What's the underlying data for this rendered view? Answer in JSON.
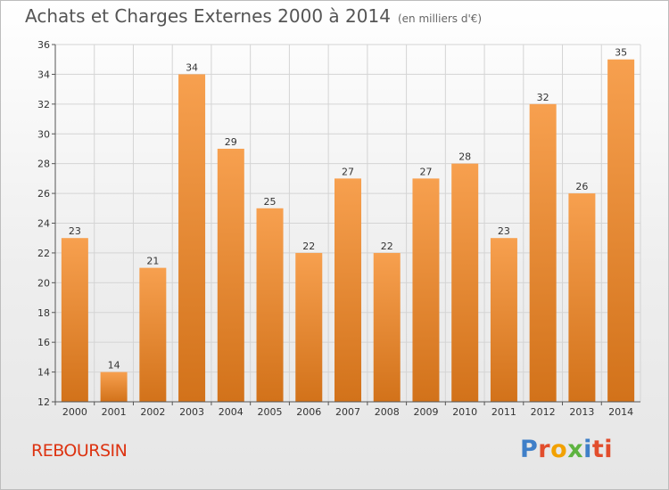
{
  "header": {
    "title": "Achats et Charges Externes 2000 à 2014",
    "unit": "(en milliers d'€)"
  },
  "footer": {
    "place": "REBOURSIN",
    "brand_letters": [
      "P",
      "r",
      "o",
      "x",
      "i",
      "ti"
    ]
  },
  "colors": {
    "bar_light": "#f7a04f",
    "bar_dark": "#d2721a",
    "place_text": "#dd3311"
  },
  "chart_data": {
    "type": "bar",
    "title": "Achats et Charges Externes 2000 à 2014",
    "subtitle": "(en milliers d'€)",
    "categories": [
      "2000",
      "2001",
      "2002",
      "2003",
      "2004",
      "2005",
      "2006",
      "2007",
      "2008",
      "2009",
      "2010",
      "2011",
      "2012",
      "2013",
      "2014"
    ],
    "values": [
      23,
      14,
      21,
      34,
      29,
      25,
      22,
      27,
      22,
      27,
      28,
      23,
      32,
      26,
      35
    ],
    "xlabel": "",
    "ylabel": "",
    "ylim": [
      12,
      36
    ],
    "yticks": [
      12,
      14,
      16,
      18,
      20,
      22,
      24,
      26,
      28,
      30,
      32,
      34,
      36
    ],
    "grid": true,
    "data_labels": true
  }
}
